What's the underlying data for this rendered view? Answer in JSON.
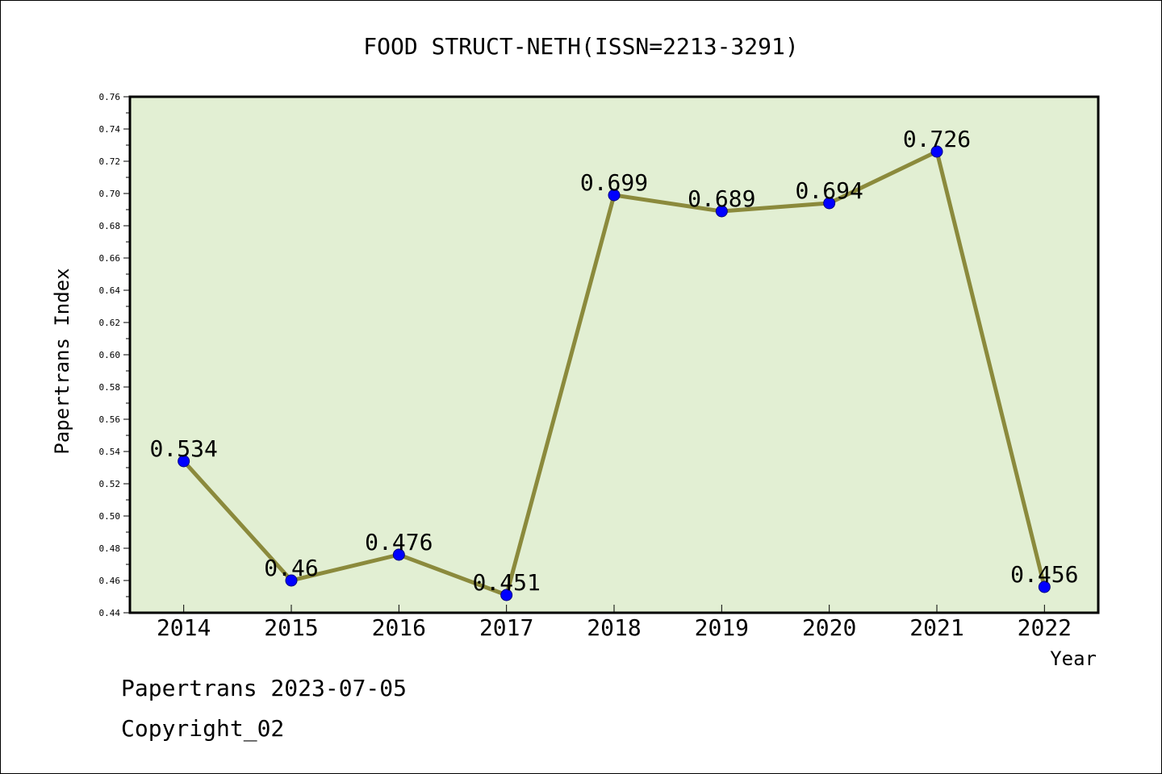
{
  "chart_data": {
    "type": "line",
    "title": "FOOD STRUCT-NETH(ISSN=2213-3291)",
    "xlabel": "Year",
    "ylabel": "Papertrans Index",
    "categories": [
      "2014",
      "2015",
      "2016",
      "2017",
      "2018",
      "2019",
      "2020",
      "2021",
      "2022"
    ],
    "values": [
      0.534,
      0.46,
      0.476,
      0.451,
      0.699,
      0.689,
      0.694,
      0.726,
      0.456
    ],
    "data_labels": [
      "0.534",
      "0.46",
      "0.476",
      "0.451",
      "0.699",
      "0.689",
      "0.694",
      "0.726",
      "0.456"
    ],
    "ylim": [
      0.44,
      0.76
    ],
    "y_ticks": [
      "0.44",
      "0.46",
      "0.48",
      "0.50",
      "0.52",
      "0.54",
      "0.56",
      "0.58",
      "0.60",
      "0.62",
      "0.64",
      "0.66",
      "0.68",
      "0.70",
      "0.72",
      "0.74",
      "0.76"
    ],
    "grid": false,
    "legend": "none",
    "colors": {
      "line": "#8b8a3c",
      "marker": "#0000ff",
      "plot_background": "#e2efd3",
      "frame": "#000000"
    }
  },
  "footer": {
    "line1": "Papertrans 2023-07-05",
    "line2": "Copyright_02"
  }
}
